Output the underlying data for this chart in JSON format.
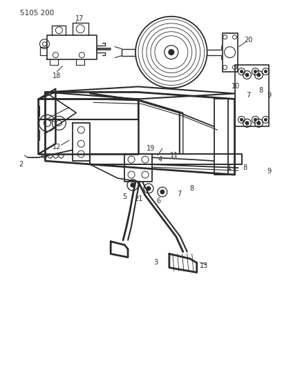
{
  "title": "5105 200",
  "bg": "#ffffff",
  "lc": "#2a2a2a",
  "fig_w": 4.08,
  "fig_h": 5.33,
  "dpi": 100
}
